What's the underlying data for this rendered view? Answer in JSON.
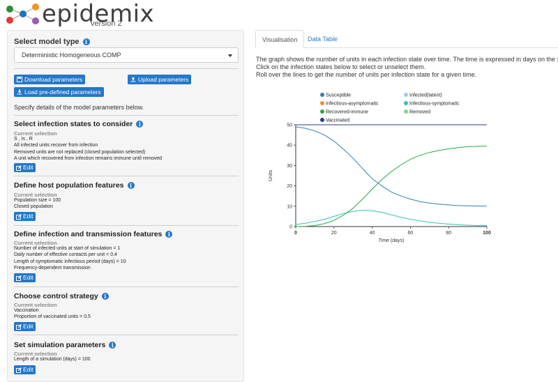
{
  "app": {
    "name": "epidemix",
    "version": "version 2"
  },
  "model_type": {
    "label": "Select model type",
    "selected": "Deterministic Homogeneous COMP"
  },
  "buttons": {
    "download": "Download parameters",
    "upload": "Upload parameters",
    "load": "Load pre-defined parameters"
  },
  "specify_text": "Specify details of the model parameters below.",
  "sections": [
    {
      "title": "Select infection states to consider",
      "current": "Current selection",
      "lines": [
        "S , Is , R",
        "All infected units recover from infection",
        "Removed units are not replaced (closed population selected)",
        "A unit which recovered from infection remains immune until removed"
      ],
      "edit": "Edit"
    },
    {
      "title": "Define host population features",
      "current": "Current selection",
      "lines": [
        "Population size = 100",
        "Closed population"
      ],
      "edit": "Edit"
    },
    {
      "title": "Define infection and transmission features",
      "current": "Current selection",
      "lines": [
        "Number of infected units at start of simulation = 1",
        "Daily number of effective contacts per unit = 0.4",
        "Length of symptomatic infectious period (days) = 10",
        "Frequency-dependent transmission"
      ],
      "edit": "Edit"
    },
    {
      "title": "Choose control strategy",
      "current": "Current selection",
      "lines": [
        "Vaccination",
        "Proportion of vaccinated units = 0.5"
      ],
      "edit": "Edit"
    },
    {
      "title": "Set simulation parameters",
      "current": "Current selection",
      "lines": [
        "Length of a simulation (days) = 100"
      ],
      "edit": "Edit"
    }
  ],
  "tabs": [
    {
      "label": "Visualisation",
      "active": true
    },
    {
      "label": "Data Table",
      "active": false
    }
  ],
  "description": [
    "The graph shows the number of units in each infection state over time. The time is expressed in days on the x-axis.",
    "Click on the infection states below to select or unselect them.",
    "Roll over the lines to get the number of units per infection state for a given time."
  ],
  "colors": {
    "accent": "#2477c9"
  },
  "chart_data": {
    "type": "line",
    "xlabel": "Time (days)",
    "ylabel": "Units",
    "xlim": [
      0,
      100
    ],
    "ylim": [
      0,
      50
    ],
    "xticks": [
      0,
      20,
      40,
      60,
      80,
      100
    ],
    "yticks": [
      0,
      10,
      20,
      30,
      40,
      50
    ],
    "legend_position": "top",
    "series": [
      {
        "name": "Susceptible",
        "color": "#2c7fb8",
        "x": [
          0,
          5,
          10,
          15,
          20,
          25,
          30,
          35,
          40,
          45,
          50,
          55,
          60,
          65,
          70,
          75,
          80,
          85,
          90,
          95,
          100
        ],
        "y": [
          49,
          48.3,
          47,
          45,
          42,
          38,
          33.5,
          28.5,
          23.5,
          20,
          17,
          15,
          13.5,
          12.3,
          11.5,
          11,
          10.6,
          10.3,
          10.2,
          10.1,
          10
        ]
      },
      {
        "name": "Infected(latent)",
        "color": "#a6c8e6",
        "x": [],
        "y": []
      },
      {
        "name": "Infectious-asymptomatic",
        "color": "#f28c28",
        "x": [],
        "y": []
      },
      {
        "name": "Infectious-symptomatic",
        "color": "#2ec4b6",
        "x": [
          0,
          5,
          10,
          15,
          20,
          25,
          30,
          35,
          40,
          45,
          50,
          55,
          60,
          65,
          70,
          75,
          80,
          85,
          90,
          95,
          100
        ],
        "y": [
          1,
          1.6,
          2.5,
          3.6,
          5,
          6.4,
          7.5,
          8,
          7.8,
          7,
          5.8,
          4.6,
          3.6,
          2.8,
          2.1,
          1.6,
          1.2,
          0.9,
          0.7,
          0.5,
          0.4
        ]
      },
      {
        "name": "Recovered-immune",
        "color": "#27a844",
        "x": [
          0,
          5,
          10,
          15,
          20,
          25,
          30,
          35,
          40,
          45,
          50,
          55,
          60,
          65,
          70,
          75,
          80,
          85,
          90,
          95,
          100
        ],
        "y": [
          0,
          0.1,
          0.5,
          1.4,
          3,
          5.6,
          9,
          13.5,
          18.5,
          23,
          27,
          30.3,
          33,
          35,
          36.4,
          37.4,
          38.2,
          38.8,
          39.2,
          39.4,
          39.6
        ]
      },
      {
        "name": "Removed",
        "color": "#7fdc7f",
        "x": [],
        "y": []
      },
      {
        "name": "Vaccinated",
        "color": "#2e3a87",
        "x": [
          0,
          100
        ],
        "y": [
          50,
          50
        ]
      }
    ]
  }
}
